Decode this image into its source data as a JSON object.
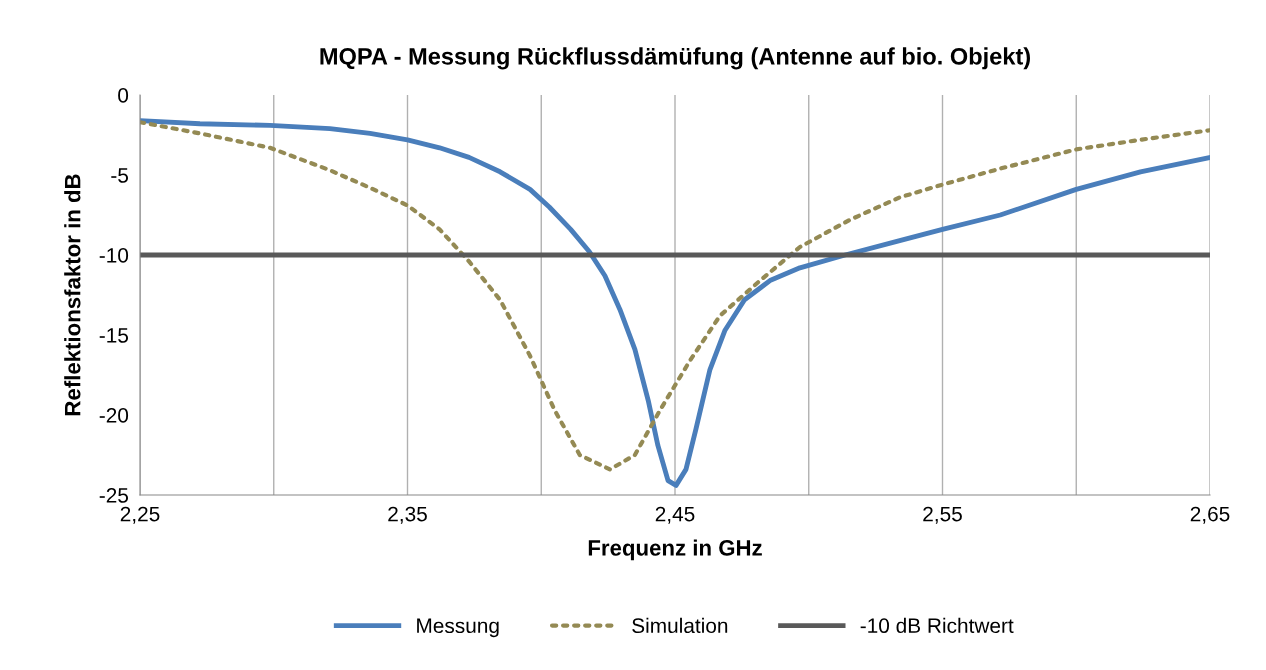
{
  "chart_data": {
    "type": "line",
    "title": "MQPA - Messung Rückflussdämüfung (Antenne auf bio. Objekt)",
    "xlabel": "Frequenz in GHz",
    "ylabel": "Reflektionsfaktor in dB",
    "xlim": [
      2.25,
      2.65
    ],
    "xticks": [
      {
        "value": 2.25,
        "label": "2,25"
      },
      {
        "value": 2.3,
        "label": null
      },
      {
        "value": 2.35,
        "label": "2,35"
      },
      {
        "value": 2.4,
        "label": null
      },
      {
        "value": 2.45,
        "label": "2,45"
      },
      {
        "value": 2.5,
        "label": null
      },
      {
        "value": 2.55,
        "label": "2,55"
      },
      {
        "value": 2.6,
        "label": null
      },
      {
        "value": 2.65,
        "label": "2,65"
      }
    ],
    "ylim": [
      -25,
      0
    ],
    "yticks": [
      -25,
      -20,
      -15,
      -10,
      -5,
      0
    ],
    "grid": "x",
    "legend": "bottom",
    "series": [
      {
        "name": "Messung",
        "color": "#4a7ebb",
        "line_style": "solid",
        "x": [
          2.25,
          2.2724,
          2.2986,
          2.321,
          2.336,
          2.35,
          2.362,
          2.373,
          2.3846,
          2.3958,
          2.403,
          2.411,
          2.418,
          2.4238,
          2.4294,
          2.435,
          2.44,
          2.4436,
          2.4474,
          2.4504,
          2.4541,
          2.4578,
          2.463,
          2.4687,
          2.476,
          2.4855,
          2.4967,
          2.5136,
          2.534,
          2.55,
          2.5716,
          2.6,
          2.624,
          2.65
        ],
        "values": [
          -1.6,
          -1.8,
          -1.9,
          -2.1,
          -2.4,
          -2.8,
          -3.3,
          -3.9,
          -4.8,
          -5.9,
          -7.0,
          -8.4,
          -9.8,
          -11.3,
          -13.4,
          -15.9,
          -19.1,
          -21.9,
          -24.1,
          -24.4,
          -23.4,
          -20.9,
          -17.2,
          -14.7,
          -12.8,
          -11.6,
          -10.8,
          -10.0,
          -9.1,
          -8.4,
          -7.5,
          -5.9,
          -4.8,
          -3.9
        ]
      },
      {
        "name": "Simulation",
        "color": "#948a54",
        "line_style": "dotted",
        "x": [
          2.25,
          2.2724,
          2.2986,
          2.321,
          2.336,
          2.35,
          2.362,
          2.373,
          2.3846,
          2.3958,
          2.405,
          2.4144,
          2.4257,
          2.435,
          2.4444,
          2.4556,
          2.4668,
          2.4818,
          2.4967,
          2.5154,
          2.534,
          2.55,
          2.5716,
          2.6,
          2.624,
          2.65
        ],
        "values": [
          -1.7,
          -2.4,
          -3.3,
          -4.7,
          -5.8,
          -6.9,
          -8.4,
          -10.4,
          -12.8,
          -16.3,
          -19.7,
          -22.5,
          -23.4,
          -22.5,
          -19.7,
          -16.6,
          -13.8,
          -11.6,
          -9.5,
          -7.8,
          -6.4,
          -5.6,
          -4.6,
          -3.4,
          -2.8,
          -2.2
        ]
      },
      {
        "name": "-10 dB Richtwert",
        "color": "#595959",
        "line_style": "solid",
        "x": [
          2.25,
          2.65
        ],
        "values": [
          -10,
          -10
        ]
      }
    ]
  }
}
